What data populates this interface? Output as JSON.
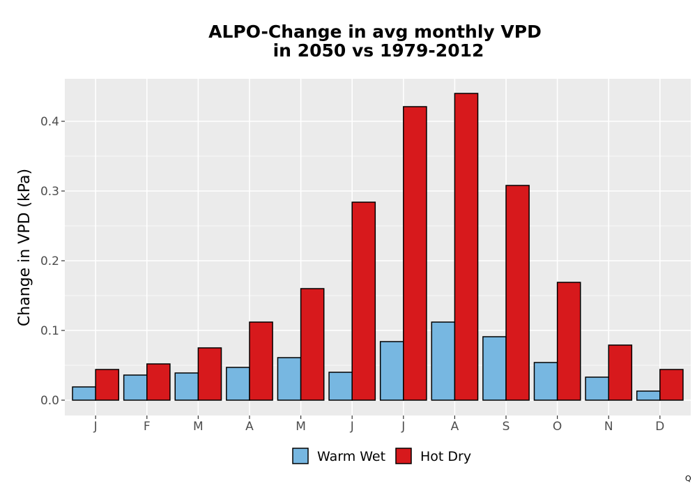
{
  "chart_data": {
    "type": "bar",
    "title_lines": [
      "ALPO-Change in avg monthly VPD",
      "in 2050 vs 1979-2012"
    ],
    "xlabel": "",
    "ylabel": "Change in VPD (kPa)",
    "categories": [
      "J",
      "F",
      "M",
      "A",
      "M",
      "J",
      "J",
      "A",
      "S",
      "O",
      "N",
      "D"
    ],
    "series": [
      {
        "name": "Warm Wet",
        "color": "#77b7e1",
        "values": [
          0.019,
          0.036,
          0.039,
          0.047,
          0.061,
          0.04,
          0.084,
          0.112,
          0.091,
          0.054,
          0.033,
          0.013
        ]
      },
      {
        "name": "Hot Dry",
        "color": "#d7191c",
        "values": [
          0.044,
          0.052,
          0.075,
          0.112,
          0.16,
          0.284,
          0.421,
          0.44,
          0.308,
          0.169,
          0.079,
          0.044
        ]
      }
    ],
    "ylim": [
      -0.022,
      0.461
    ],
    "yticks": [
      0.0,
      0.1,
      0.2,
      0.3,
      0.4
    ],
    "ytick_labels": [
      "0.0",
      "0.1",
      "0.2",
      "0.3",
      "0.4"
    ],
    "grid": true,
    "panel_background": "#ebebeb",
    "legend_position": "bottom",
    "corner_mark": "Q"
  }
}
